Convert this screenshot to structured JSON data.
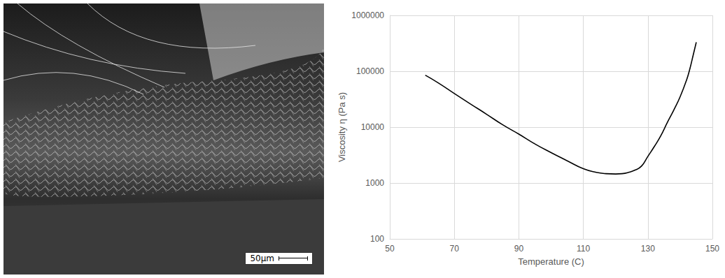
{
  "chart_data": {
    "type": "line",
    "xlabel": "Temperature (C)",
    "ylabel": "Viscosity η (Pa s)",
    "x": [
      61,
      65,
      70,
      75,
      80,
      85,
      90,
      95,
      100,
      105,
      110,
      114,
      117,
      120,
      122,
      124,
      126,
      128,
      130,
      132,
      134,
      136,
      138,
      140,
      142,
      143,
      144,
      145
    ],
    "series": [
      {
        "name": "Viscosity",
        "color": "#000000",
        "values": [
          85000,
          62000,
          40000,
          26000,
          17000,
          11000,
          7500,
          5000,
          3500,
          2500,
          1800,
          1550,
          1470,
          1450,
          1470,
          1550,
          1700,
          2000,
          3000,
          4500,
          7000,
          12000,
          20000,
          35000,
          70000,
          110000,
          190000,
          330000
        ]
      }
    ],
    "xlim": [
      50,
      150
    ],
    "xticks": [
      50,
      70,
      90,
      110,
      130,
      150
    ],
    "ylim": [
      100,
      1000000
    ],
    "yticks": [
      100,
      1000,
      10000,
      100000,
      1000000
    ],
    "log": "y",
    "grid": true
  },
  "micrograph": {
    "scale_bar_label": "50μm"
  }
}
